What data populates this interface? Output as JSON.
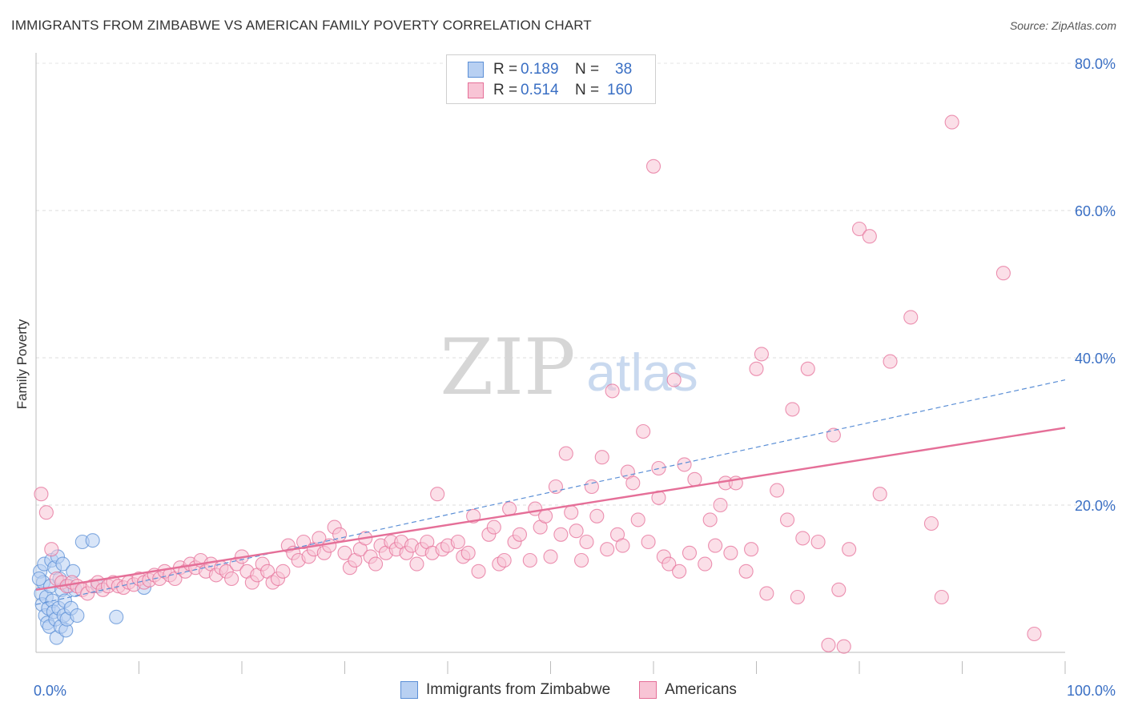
{
  "title": "IMMIGRANTS FROM ZIMBABWE VS AMERICAN FAMILY POVERTY CORRELATION CHART",
  "source": "Source: ZipAtlas.com",
  "watermark": {
    "zip": "ZIP",
    "atlas": "atlas"
  },
  "legend": {
    "r_label": "R =",
    "n_label": "N =",
    "rows": [
      {
        "r": "0.189",
        "n": "38",
        "color": "#5b8fd6",
        "fill": "#b8d0f2"
      },
      {
        "r": "0.514",
        "n": "160",
        "color": "#e56f98",
        "fill": "#f8c4d5"
      }
    ]
  },
  "bottom_legend": {
    "items": [
      {
        "label": "Immigrants from Zimbabwe",
        "color": "#5b8fd6",
        "fill": "#b8d0f2"
      },
      {
        "label": "Americans",
        "color": "#e56f98",
        "fill": "#f8c4d5"
      }
    ]
  },
  "chart_data": {
    "type": "scatter",
    "title": "IMMIGRANTS FROM ZIMBABWE VS AMERICAN FAMILY POVERTY CORRELATION CHART",
    "xlabel": "",
    "ylabel": "Family Poverty",
    "xlim": [
      0,
      100
    ],
    "ylim": [
      0,
      80
    ],
    "x_tick_labels": [
      "0.0%",
      "100.0%"
    ],
    "y_tick_labels": [
      "20.0%",
      "40.0%",
      "60.0%",
      "80.0%"
    ],
    "y_ticks": [
      20,
      40,
      60,
      80
    ],
    "grid": true,
    "legend_position": "top-center",
    "series": [
      {
        "name": "Immigrants from Zimbabwe",
        "color": "#5b8fd6",
        "fill": "#b8d0f2",
        "trend": {
          "x0": 0,
          "y0": 6.5,
          "x1": 100,
          "y1": 37.0,
          "style": "dashed"
        },
        "points": [
          [
            0.4,
            11.0
          ],
          [
            0.5,
            8.0
          ],
          [
            0.6,
            6.5
          ],
          [
            0.7,
            9.5
          ],
          [
            0.8,
            12.0
          ],
          [
            0.9,
            5.0
          ],
          [
            1.0,
            7.5
          ],
          [
            1.1,
            4.0
          ],
          [
            1.2,
            6.0
          ],
          [
            1.3,
            3.5
          ],
          [
            1.4,
            9.0
          ],
          [
            1.5,
            12.5
          ],
          [
            1.6,
            7.0
          ],
          [
            1.7,
            5.5
          ],
          [
            1.8,
            11.5
          ],
          [
            1.9,
            4.5
          ],
          [
            2.0,
            2.0
          ],
          [
            2.1,
            13.0
          ],
          [
            2.2,
            6.0
          ],
          [
            2.3,
            10.0
          ],
          [
            2.4,
            3.5
          ],
          [
            2.5,
            8.5
          ],
          [
            2.6,
            12.0
          ],
          [
            2.7,
            5.0
          ],
          [
            2.8,
            7.0
          ],
          [
            2.9,
            3.0
          ],
          [
            3.0,
            4.5
          ],
          [
            3.2,
            9.0
          ],
          [
            3.4,
            6.0
          ],
          [
            3.6,
            11.0
          ],
          [
            3.8,
            8.5
          ],
          [
            4.0,
            5.0
          ],
          [
            4.5,
            15.0
          ],
          [
            5.5,
            15.2
          ],
          [
            6.0,
            9.0
          ],
          [
            7.8,
            4.8
          ],
          [
            10.5,
            8.8
          ],
          [
            0.3,
            10.0
          ]
        ]
      },
      {
        "name": "Americans",
        "color": "#e56f98",
        "fill": "#f8c4d5",
        "trend": {
          "x0": 0,
          "y0": 8.5,
          "x1": 100,
          "y1": 30.5,
          "style": "solid"
        },
        "points": [
          [
            0.5,
            21.5
          ],
          [
            1.0,
            19.0
          ],
          [
            1.5,
            14.0
          ],
          [
            2.0,
            10.0
          ],
          [
            2.5,
            9.5
          ],
          [
            3.0,
            9.0
          ],
          [
            3.5,
            9.5
          ],
          [
            4.0,
            9.0
          ],
          [
            4.5,
            8.5
          ],
          [
            5.0,
            8.0
          ],
          [
            5.5,
            9.0
          ],
          [
            6.0,
            9.5
          ],
          [
            6.5,
            8.5
          ],
          [
            7.0,
            9.0
          ],
          [
            7.5,
            9.5
          ],
          [
            8.0,
            9.0
          ],
          [
            8.5,
            8.8
          ],
          [
            9.0,
            9.5
          ],
          [
            9.5,
            9.2
          ],
          [
            10.0,
            10.0
          ],
          [
            10.5,
            9.5
          ],
          [
            11.0,
            9.8
          ],
          [
            11.5,
            10.5
          ],
          [
            12.0,
            10.0
          ],
          [
            12.5,
            11.0
          ],
          [
            13.0,
            10.5
          ],
          [
            13.5,
            10.0
          ],
          [
            14.0,
            11.5
          ],
          [
            14.5,
            11.0
          ],
          [
            15.0,
            12.0
          ],
          [
            15.5,
            11.5
          ],
          [
            16.0,
            12.5
          ],
          [
            16.5,
            11.0
          ],
          [
            17.0,
            12.0
          ],
          [
            17.5,
            10.5
          ],
          [
            18.0,
            11.5
          ],
          [
            18.5,
            11.0
          ],
          [
            19.0,
            10.0
          ],
          [
            19.5,
            12.0
          ],
          [
            20.0,
            13.0
          ],
          [
            20.5,
            11.0
          ],
          [
            21.0,
            9.5
          ],
          [
            21.5,
            10.5
          ],
          [
            22.0,
            12.0
          ],
          [
            22.5,
            11.0
          ],
          [
            23.0,
            9.5
          ],
          [
            23.5,
            10.0
          ],
          [
            24.0,
            11.0
          ],
          [
            24.5,
            14.5
          ],
          [
            25.0,
            13.5
          ],
          [
            25.5,
            12.5
          ],
          [
            26.0,
            15.0
          ],
          [
            26.5,
            13.0
          ],
          [
            27.0,
            14.0
          ],
          [
            27.5,
            15.5
          ],
          [
            28.0,
            13.5
          ],
          [
            28.5,
            14.5
          ],
          [
            29.0,
            17.0
          ],
          [
            29.5,
            16.0
          ],
          [
            30.0,
            13.5
          ],
          [
            30.5,
            11.5
          ],
          [
            31.0,
            12.5
          ],
          [
            31.5,
            14.0
          ],
          [
            32.0,
            15.5
          ],
          [
            32.5,
            13.0
          ],
          [
            33.0,
            12.0
          ],
          [
            33.5,
            14.5
          ],
          [
            34.0,
            13.5
          ],
          [
            34.5,
            15.0
          ],
          [
            35.0,
            14.0
          ],
          [
            35.5,
            15.0
          ],
          [
            36.0,
            13.5
          ],
          [
            36.5,
            14.5
          ],
          [
            37.0,
            12.0
          ],
          [
            37.5,
            14.0
          ],
          [
            38.0,
            15.0
          ],
          [
            38.5,
            13.5
          ],
          [
            39.0,
            21.5
          ],
          [
            39.5,
            14.0
          ],
          [
            40.0,
            14.5
          ],
          [
            41.0,
            15.0
          ],
          [
            41.5,
            13.0
          ],
          [
            42.0,
            13.5
          ],
          [
            43.0,
            11.0
          ],
          [
            44.0,
            16.0
          ],
          [
            44.5,
            17.0
          ],
          [
            45.0,
            12.0
          ],
          [
            45.5,
            12.5
          ],
          [
            46.0,
            19.5
          ],
          [
            46.5,
            15.0
          ],
          [
            47.0,
            16.0
          ],
          [
            48.0,
            12.5
          ],
          [
            48.5,
            19.5
          ],
          [
            49.0,
            17.0
          ],
          [
            49.5,
            18.5
          ],
          [
            50.0,
            13.0
          ],
          [
            50.5,
            22.5
          ],
          [
            51.0,
            16.0
          ],
          [
            51.5,
            27.0
          ],
          [
            52.0,
            19.0
          ],
          [
            52.5,
            16.5
          ],
          [
            53.0,
            12.5
          ],
          [
            53.5,
            15.0
          ],
          [
            54.0,
            22.5
          ],
          [
            54.5,
            18.5
          ],
          [
            55.0,
            26.5
          ],
          [
            55.5,
            14.0
          ],
          [
            56.0,
            35.5
          ],
          [
            56.5,
            16.0
          ],
          [
            57.0,
            14.5
          ],
          [
            57.5,
            24.5
          ],
          [
            58.0,
            23.0
          ],
          [
            58.5,
            18.0
          ],
          [
            59.0,
            30.0
          ],
          [
            59.5,
            15.0
          ],
          [
            60.0,
            66.0
          ],
          [
            60.5,
            25.0
          ],
          [
            61.0,
            13.0
          ],
          [
            61.5,
            12.0
          ],
          [
            62.0,
            37.0
          ],
          [
            62.5,
            11.0
          ],
          [
            63.0,
            25.5
          ],
          [
            63.5,
            13.5
          ],
          [
            64.0,
            23.5
          ],
          [
            65.0,
            12.0
          ],
          [
            65.5,
            18.0
          ],
          [
            66.0,
            14.5
          ],
          [
            67.0,
            23.0
          ],
          [
            67.5,
            13.5
          ],
          [
            68.0,
            23.0
          ],
          [
            69.0,
            11.0
          ],
          [
            69.5,
            14.0
          ],
          [
            70.0,
            38.5
          ],
          [
            70.5,
            40.5
          ],
          [
            71.0,
            8.0
          ],
          [
            72.0,
            22.0
          ],
          [
            73.0,
            18.0
          ],
          [
            73.5,
            33.0
          ],
          [
            74.0,
            7.5
          ],
          [
            74.5,
            15.5
          ],
          [
            75.0,
            38.5
          ],
          [
            76.0,
            15.0
          ],
          [
            77.0,
            1.0
          ],
          [
            77.5,
            29.5
          ],
          [
            78.0,
            8.5
          ],
          [
            78.5,
            0.8
          ],
          [
            79.0,
            14.0
          ],
          [
            80.0,
            57.5
          ],
          [
            81.0,
            56.5
          ],
          [
            82.0,
            21.5
          ],
          [
            83.0,
            39.5
          ],
          [
            85.0,
            45.5
          ],
          [
            87.0,
            17.5
          ],
          [
            88.0,
            7.5
          ],
          [
            89.0,
            72.0
          ],
          [
            94.0,
            51.5
          ],
          [
            97.0,
            2.5
          ],
          [
            60.5,
            21.0
          ],
          [
            42.5,
            18.5
          ],
          [
            66.5,
            20.0
          ]
        ]
      }
    ]
  }
}
